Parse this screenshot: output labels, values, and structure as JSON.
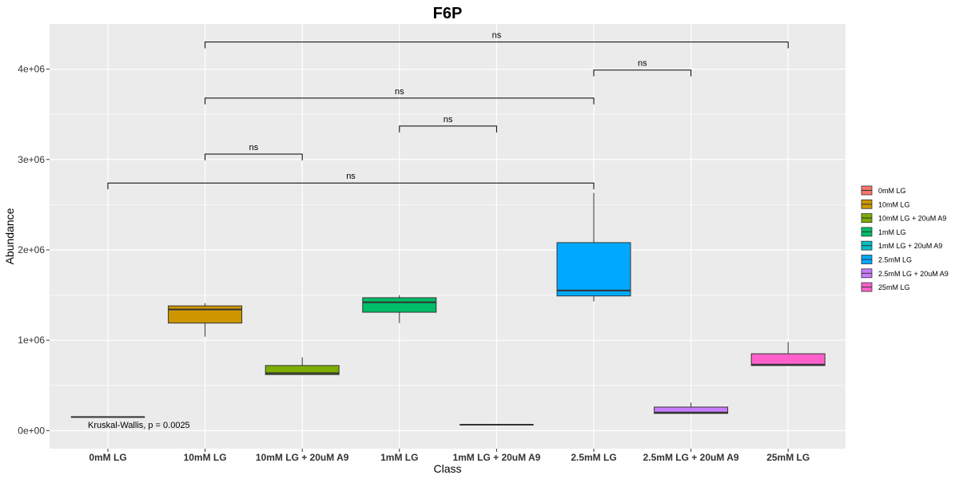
{
  "chart_data": {
    "type": "box",
    "title": "F6P",
    "xlabel": "Class",
    "ylabel": "Abundance",
    "ylim": [
      -200000,
      4500000
    ],
    "y_ticks": [
      0,
      1000000,
      2000000,
      3000000,
      4000000
    ],
    "y_tick_labels": [
      "0e+00",
      "1e+06",
      "2e+06",
      "3e+06",
      "4e+06"
    ],
    "categories": [
      "0mM LG",
      "10mM LG",
      "10mM LG + 20uM A9",
      "1mM LG",
      "1mM LG + 20uM A9",
      "2.5mM LG",
      "2.5mM LG + 20uM A9",
      "25mM LG"
    ],
    "legend": {
      "position": "right",
      "entries": [
        {
          "label": "0mM LG",
          "color": "#F8766D"
        },
        {
          "label": "10mM LG",
          "color": "#CD9600"
        },
        {
          "label": "10mM LG + 20uM A9",
          "color": "#7CAE00"
        },
        {
          "label": "1mM LG",
          "color": "#00BE67"
        },
        {
          "label": "1mM LG + 20uM A9",
          "color": "#00BFC4"
        },
        {
          "label": "2.5mM LG",
          "color": "#00A9FF"
        },
        {
          "label": "2.5mM LG + 20uM A9",
          "color": "#C77CFF"
        },
        {
          "label": "25mM LG",
          "color": "#FF61CC"
        }
      ]
    },
    "boxes": [
      {
        "category": "0mM LG",
        "color": "#F8766D",
        "min": 150000,
        "q1": 150000,
        "median": 150000,
        "q3": 150000,
        "max": 150000
      },
      {
        "category": "10mM LG",
        "color": "#CD9600",
        "min": 1040000,
        "q1": 1190000,
        "median": 1340000,
        "q3": 1380000,
        "max": 1410000
      },
      {
        "category": "10mM LG + 20uM A9",
        "color": "#7CAE00",
        "min": 620000,
        "q1": 620000,
        "median": 635000,
        "q3": 720000,
        "max": 810000
      },
      {
        "category": "1mM LG",
        "color": "#00BE67",
        "min": 1190000,
        "q1": 1310000,
        "median": 1420000,
        "q3": 1470000,
        "max": 1500000
      },
      {
        "category": "1mM LG + 20uM A9",
        "color": "#00BFC4",
        "min": 65000,
        "q1": 65000,
        "median": 65000,
        "q3": 65000,
        "max": 65000
      },
      {
        "category": "2.5mM LG",
        "color": "#00A9FF",
        "min": 1430000,
        "q1": 1490000,
        "median": 1550000,
        "q3": 2080000,
        "max": 2630000
      },
      {
        "category": "2.5mM LG + 20uM A9",
        "color": "#C77CFF",
        "min": 190000,
        "q1": 190000,
        "median": 200000,
        "q3": 260000,
        "max": 310000
      },
      {
        "category": "25mM LG",
        "color": "#FF61CC",
        "min": 720000,
        "q1": 720000,
        "median": 730000,
        "q3": 850000,
        "max": 980000
      }
    ],
    "comparisons": [
      {
        "from": "0mM LG",
        "to": "2.5mM LG",
        "label": "ns",
        "y": 2740000,
        "tick_depth": 70000
      },
      {
        "from": "10mM LG",
        "to": "10mM LG + 20uM A9",
        "label": "ns",
        "y": 3060000,
        "tick_depth": 70000
      },
      {
        "from": "1mM LG",
        "to": "1mM LG + 20uM A9",
        "label": "ns",
        "y": 3370000,
        "tick_depth": 70000
      },
      {
        "from": "10mM LG",
        "to": "2.5mM LG",
        "label": "ns",
        "y": 3680000,
        "tick_depth": 70000
      },
      {
        "from": "2.5mM LG",
        "to": "2.5mM LG + 20uM A9",
        "label": "ns",
        "y": 3990000,
        "tick_depth": 70000
      },
      {
        "from": "10mM LG",
        "to": "25mM LG",
        "label": "ns",
        "y": 4300000,
        "tick_depth": 70000
      }
    ],
    "annotation": {
      "text": "Kruskal-Wallis, p = 0.0025",
      "x_category": "0mM LG",
      "y": 30000
    },
    "grid": true,
    "panel_background": "#EBEBEB",
    "grid_color": "#FFFFFF"
  }
}
